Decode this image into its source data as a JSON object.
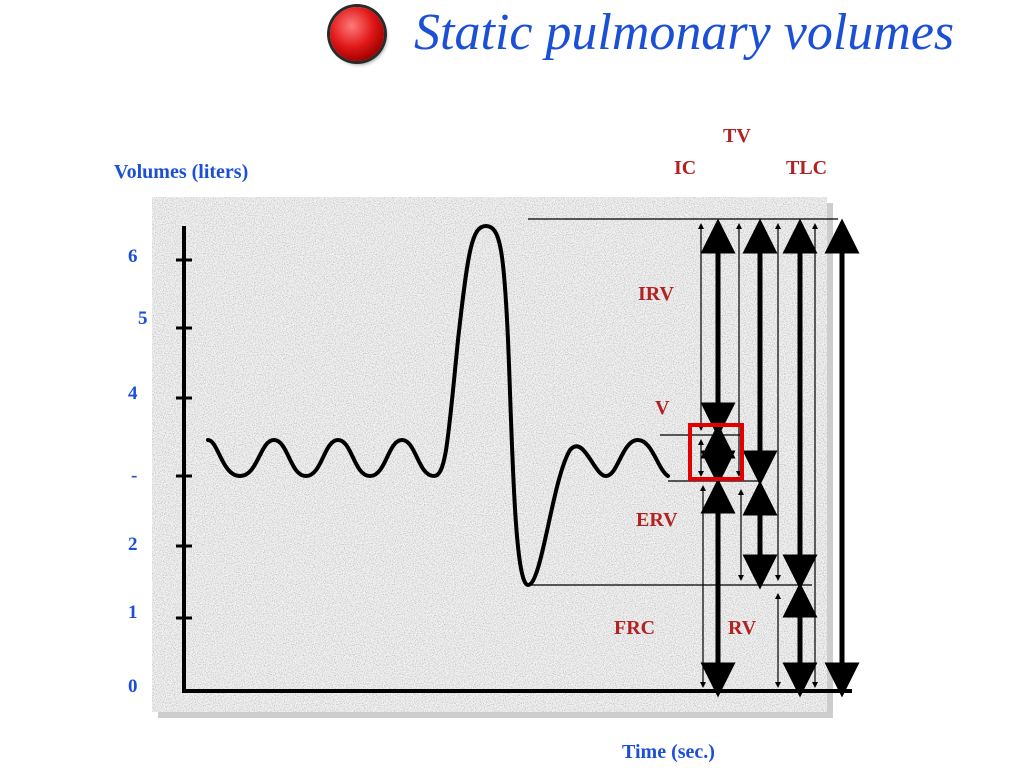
{
  "slide": {
    "title": "Static pulmonary volumes",
    "title_color": "#1a4fd6",
    "bullet_color": "#e01818"
  },
  "diagram": {
    "y_axis_label": "Volumes (liters)",
    "x_axis_label": "Time (sec.)",
    "y_ticks": [
      "6",
      "5",
      "4",
      "-",
      "2",
      "1",
      "0"
    ],
    "labels": {
      "tv": "TV",
      "ic": "IC",
      "tlc": "TLC",
      "irv": "IRV",
      "v": "V",
      "erv": "ERV",
      "frc": "FRC",
      "rv": "RV"
    },
    "label_color": "#b22222",
    "axis_label_color": "#1a4fd6",
    "highlight_color": "#e00000",
    "background": "speckled-gray"
  }
}
